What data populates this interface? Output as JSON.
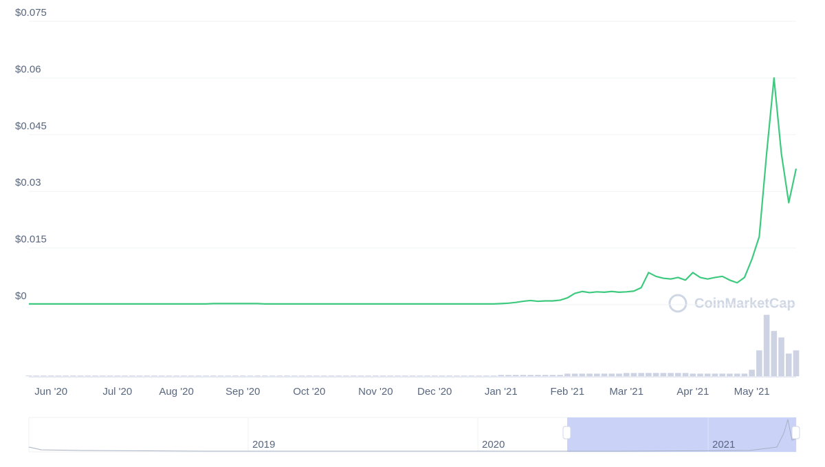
{
  "chart_data": {
    "type": "line",
    "categories": [
      null,
      null,
      null,
      "Jun '20",
      null,
      null,
      null,
      null,
      null,
      null,
      null,
      null,
      "Jul '20",
      null,
      null,
      null,
      null,
      null,
      null,
      null,
      "Aug '20",
      null,
      null,
      null,
      null,
      null,
      null,
      null,
      null,
      "Sep '20",
      null,
      null,
      null,
      null,
      null,
      null,
      null,
      null,
      "Oct '20",
      null,
      null,
      null,
      null,
      null,
      null,
      null,
      null,
      "Nov '20",
      null,
      null,
      null,
      null,
      null,
      null,
      null,
      "Dec '20",
      null,
      null,
      null,
      null,
      null,
      null,
      null,
      null,
      "Jan '21",
      null,
      null,
      null,
      null,
      null,
      null,
      null,
      null,
      "Feb '21",
      null,
      null,
      null,
      null,
      null,
      null,
      null,
      "Mar '21",
      null,
      null,
      null,
      null,
      null,
      null,
      null,
      null,
      "Apr '21",
      null,
      null,
      null,
      null,
      null,
      null,
      null,
      "May '21",
      null,
      null,
      null,
      null,
      null,
      null
    ],
    "values": [
      0.0002,
      0.0002,
      0.0002,
      0.0002,
      0.0002,
      0.0002,
      0.0002,
      0.0002,
      0.0002,
      0.0002,
      0.0002,
      0.0002,
      0.0002,
      0.0002,
      0.0002,
      0.0002,
      0.0002,
      0.0002,
      0.0002,
      0.0002,
      0.0002,
      0.0002,
      0.0002,
      0.0002,
      0.0002,
      0.0003,
      0.0003,
      0.0003,
      0.0003,
      0.0003,
      0.0003,
      0.0003,
      0.0002,
      0.0002,
      0.0002,
      0.0002,
      0.0002,
      0.0002,
      0.0002,
      0.0002,
      0.0002,
      0.0002,
      0.0002,
      0.0002,
      0.0002,
      0.0002,
      0.0002,
      0.0002,
      0.0002,
      0.0002,
      0.0002,
      0.0002,
      0.0002,
      0.0002,
      0.0002,
      0.0002,
      0.0002,
      0.0002,
      0.0002,
      0.0002,
      0.0002,
      0.0002,
      0.0002,
      0.0002,
      0.0003,
      0.0004,
      0.0006,
      0.0009,
      0.0011,
      0.0009,
      0.001,
      0.001,
      0.0012,
      0.0018,
      0.003,
      0.0035,
      0.0032,
      0.0034,
      0.0033,
      0.0035,
      0.0033,
      0.0034,
      0.0036,
      0.0045,
      0.0085,
      0.0075,
      0.007,
      0.0068,
      0.0072,
      0.0065,
      0.0085,
      0.0072,
      0.0068,
      0.0072,
      0.0075,
      0.0065,
      0.0058,
      0.0072,
      0.012,
      0.018,
      0.04,
      0.06,
      0.04,
      0.027,
      0.036
    ],
    "color": "#3dc97e",
    "ylim": [
      0,
      0.075
    ],
    "yticks": [
      {
        "value": 0,
        "label": "$0"
      },
      {
        "value": 0.015,
        "label": "$0.015"
      },
      {
        "value": 0.03,
        "label": "$0.03"
      },
      {
        "value": 0.045,
        "label": "$0.045"
      },
      {
        "value": 0.06,
        "label": "$0.06"
      },
      {
        "value": 0.075,
        "label": "$0.075"
      }
    ],
    "grid": true,
    "volume": [
      1,
      1,
      1,
      1,
      1,
      1,
      1,
      1,
      1,
      1,
      1,
      1,
      1,
      1,
      1,
      1,
      1,
      1,
      1,
      1,
      1,
      1,
      1,
      1,
      1,
      1,
      1,
      1,
      1,
      1,
      1,
      1,
      1,
      1,
      1,
      1,
      1,
      1,
      1,
      1,
      1,
      1,
      1,
      1,
      1,
      1,
      1,
      1,
      1,
      1,
      1,
      1,
      1,
      1,
      1,
      1,
      1,
      1,
      1,
      1,
      1,
      1,
      1,
      1,
      2,
      2,
      2,
      2,
      2,
      2,
      2,
      2,
      2,
      4,
      4,
      4,
      4,
      4,
      4,
      4,
      4,
      5,
      5,
      5,
      5,
      5,
      5,
      5,
      5,
      5,
      4,
      4,
      4,
      4,
      4,
      4,
      4,
      4,
      10,
      40,
      95,
      70,
      60,
      35,
      40
    ],
    "volume_lim": [
      0,
      100
    ],
    "volume_color": "#ced3e4",
    "watermark": "CoinMarketCap",
    "navigator_labels": [
      "2019",
      "2020",
      "2021"
    ]
  }
}
